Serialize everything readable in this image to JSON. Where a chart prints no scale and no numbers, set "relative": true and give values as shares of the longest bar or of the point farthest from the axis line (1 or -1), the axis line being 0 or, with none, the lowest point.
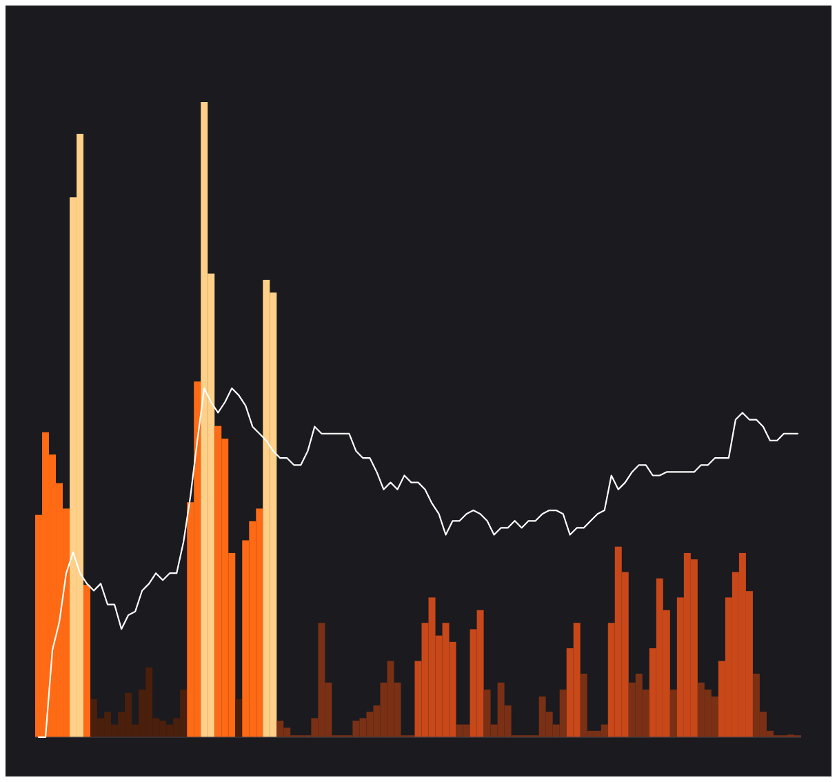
{
  "chart_data": [
    {
      "type": "bar",
      "relative": true,
      "categories": [
        null,
        null,
        null,
        null,
        null,
        null,
        null,
        null,
        null,
        null,
        null,
        null,
        null,
        null,
        null,
        null,
        null,
        null,
        null,
        null,
        null,
        null,
        null,
        null,
        null,
        null,
        null,
        null,
        null,
        null,
        null,
        null,
        null,
        null,
        null,
        null,
        null,
        null,
        null,
        null,
        null,
        null,
        null,
        null,
        null,
        null,
        null,
        null,
        null,
        null,
        null,
        null,
        null,
        null,
        null,
        null,
        null,
        null,
        null,
        null,
        null,
        null,
        null,
        null,
        null,
        null,
        null,
        null,
        null,
        null,
        null,
        null,
        null,
        null,
        null,
        null,
        null,
        null,
        null,
        null,
        null,
        null,
        null,
        null,
        null,
        null,
        null,
        null,
        null,
        null,
        null,
        null,
        null,
        null,
        null,
        null,
        null,
        null,
        null,
        null,
        null,
        null,
        null,
        null,
        null,
        null,
        null,
        null,
        null,
        null,
        null
      ],
      "series": [
        {
          "values": [
            0.35,
            0.48,
            0.445,
            0.4,
            0.36,
            0.85,
            0.95,
            0.24,
            0.06,
            0.03,
            0.04,
            0.02,
            0.04,
            0.07,
            0.02,
            0.075,
            0.11,
            0.03,
            0.026,
            0.02,
            0.03,
            0.075,
            0.37,
            0.56,
            1.0,
            0.73,
            0.49,
            0.47,
            0.29,
            0.06,
            0.31,
            0.34,
            0.36,
            0.72,
            0.7,
            0.026,
            0.015,
            0.003,
            0.003,
            0.003,
            0.03,
            0.18,
            0.086,
            0.003,
            0.003,
            0.003,
            0.026,
            0.03,
            0.04,
            0.05,
            0.086,
            0.12,
            0.086,
            0.003,
            0.003,
            0.12,
            0.18,
            0.22,
            0.16,
            0.18,
            0.15,
            0.02,
            0.02,
            0.17,
            0.2,
            0.075,
            0.02,
            0.086,
            0.05,
            0.003,
            0.003,
            0.003,
            0.003,
            0.064,
            0.04,
            0.02,
            0.075,
            0.14,
            0.18,
            0.1,
            0.01,
            0.01,
            0.02,
            0.18,
            0.3,
            0.26,
            0.086,
            0.1,
            0.075,
            0.14,
            0.25,
            0.2,
            0.075,
            0.22,
            0.29,
            0.28,
            0.086,
            0.075,
            0.064,
            0.12,
            0.22,
            0.26,
            0.29,
            0.23,
            0.1,
            0.04,
            0.01,
            0.003,
            0.003,
            0.004,
            0.003
          ],
          "colors": [
            "#ff6a14",
            "#ff6a14",
            "#ff6a14",
            "#ff6a14",
            "#ff6a14",
            "#ffd088",
            "#ffd088",
            "#ff6a14",
            "#4a1f0c",
            "#4a1f0c",
            "#4a1f0c",
            "#4a1f0c",
            "#4a1f0c",
            "#4a1f0c",
            "#4a1f0c",
            "#4a1f0c",
            "#4a1f0c",
            "#4a1f0c",
            "#4a1f0c",
            "#4a1f0c",
            "#4a1f0c",
            "#4a1f0c",
            "#ff6a14",
            "#ff6a14",
            "#ffd088",
            "#ffd088",
            "#ff6a14",
            "#ff6a14",
            "#ff6a14",
            "#4a1f0c",
            "#ff6a14",
            "#ff6a14",
            "#ff6a14",
            "#ffd088",
            "#ffd088",
            "#7a3015",
            "#7a3015",
            "#7a3015",
            "#7a3015",
            "#7a3015",
            "#7a3015",
            "#7a3015",
            "#7a3015",
            "#7a3015",
            "#7a3015",
            "#7a3015",
            "#7a3015",
            "#7a3015",
            "#7a3015",
            "#7a3015",
            "#7a3015",
            "#7a3015",
            "#7a3015",
            "#7a3015",
            "#7a3015",
            "#c8481a",
            "#c8481a",
            "#c8481a",
            "#c8481a",
            "#c8481a",
            "#c8481a",
            "#7a3015",
            "#7a3015",
            "#c8481a",
            "#c8481a",
            "#7a3015",
            "#7a3015",
            "#7a3015",
            "#7a3015",
            "#7a3015",
            "#7a3015",
            "#7a3015",
            "#7a3015",
            "#7a3015",
            "#7a3015",
            "#7a3015",
            "#7a3015",
            "#c8481a",
            "#c8481a",
            "#7a3015",
            "#7a3015",
            "#7a3015",
            "#7a3015",
            "#c8481a",
            "#c8481a",
            "#c8481a",
            "#7a3015",
            "#7a3015",
            "#7a3015",
            "#c8481a",
            "#c8481a",
            "#c8481a",
            "#7a3015",
            "#c8481a",
            "#c8481a",
            "#c8481a",
            "#7a3015",
            "#7a3015",
            "#7a3015",
            "#c8481a",
            "#c8481a",
            "#c8481a",
            "#c8481a",
            "#c8481a",
            "#7a3015",
            "#7a3015",
            "#7a3015",
            "#7a3015",
            "#7a3015",
            "#7a3015",
            "#7a3015"
          ]
        }
      ]
    },
    {
      "type": "line",
      "relative": true,
      "categories": [
        null,
        null,
        null,
        null,
        null,
        null,
        null,
        null,
        null,
        null,
        null,
        null,
        null,
        null,
        null,
        null,
        null,
        null,
        null,
        null,
        null,
        null,
        null,
        null,
        null,
        null,
        null,
        null,
        null,
        null,
        null,
        null,
        null,
        null,
        null,
        null,
        null,
        null,
        null,
        null,
        null,
        null,
        null,
        null,
        null,
        null,
        null,
        null,
        null,
        null,
        null,
        null,
        null,
        null,
        null,
        null,
        null,
        null,
        null,
        null,
        null,
        null,
        null,
        null,
        null,
        null,
        null,
        null,
        null,
        null,
        null,
        null,
        null,
        null,
        null,
        null,
        null,
        null,
        null,
        null,
        null,
        null,
        null,
        null,
        null,
        null,
        null,
        null,
        null,
        null,
        null,
        null,
        null,
        null,
        null,
        null,
        null,
        null,
        null,
        null,
        null,
        null,
        null,
        null,
        null,
        null,
        null,
        null,
        null,
        null,
        null
      ],
      "series": [
        {
          "color": "#ffffff",
          "values": [
            0,
            0,
            0.25,
            0.33,
            0.47,
            0.53,
            0.47,
            0.44,
            0.42,
            0.44,
            0.38,
            0.38,
            0.31,
            0.35,
            0.36,
            0.42,
            0.44,
            0.47,
            0.45,
            0.47,
            0.47,
            0.56,
            0.69,
            0.85,
            1.0,
            0.96,
            0.93,
            0.96,
            1.0,
            0.98,
            0.95,
            0.89,
            0.87,
            0.85,
            0.82,
            0.8,
            0.8,
            0.78,
            0.78,
            0.82,
            0.89,
            0.87,
            0.87,
            0.87,
            0.87,
            0.87,
            0.82,
            0.8,
            0.8,
            0.76,
            0.71,
            0.73,
            0.71,
            0.75,
            0.73,
            0.73,
            0.71,
            0.67,
            0.64,
            0.58,
            0.62,
            0.62,
            0.64,
            0.65,
            0.64,
            0.62,
            0.58,
            0.6,
            0.6,
            0.62,
            0.6,
            0.62,
            0.62,
            0.64,
            0.65,
            0.65,
            0.64,
            0.58,
            0.6,
            0.6,
            0.62,
            0.64,
            0.65,
            0.75,
            0.71,
            0.73,
            0.76,
            0.78,
            0.78,
            0.75,
            0.75,
            0.76,
            0.76,
            0.76,
            0.76,
            0.76,
            0.78,
            0.78,
            0.8,
            0.8,
            0.8,
            0.91,
            0.93,
            0.91,
            0.91,
            0.89,
            0.85,
            0.85,
            0.87,
            0.87,
            0.87
          ]
        }
      ]
    }
  ]
}
